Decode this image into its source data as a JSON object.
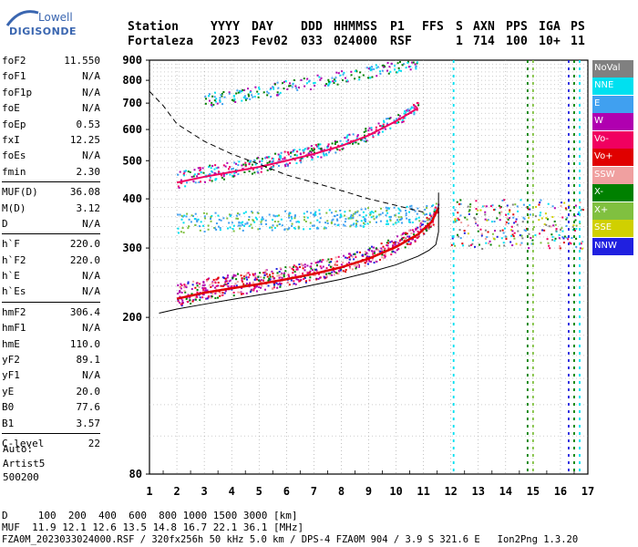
{
  "logo": {
    "line1": "Lowell",
    "line2": "DIGISONDE"
  },
  "header": {
    "labels": [
      "Station",
      "YYYY",
      "DAY",
      "DDD",
      "HHMMSS",
      "P1",
      "FFS",
      "S",
      "AXN",
      "PPS",
      "IGA",
      "PS"
    ],
    "values": [
      "Fortaleza",
      "2023",
      "Fev02",
      "033",
      "024000",
      "RSF",
      "1",
      "714",
      "100",
      "10+",
      "11"
    ]
  },
  "parameters": [
    [
      {
        "name": "foF2",
        "value": "11.550"
      },
      {
        "name": "foF1",
        "value": "N/A"
      },
      {
        "name": "foF1p",
        "value": "N/A"
      },
      {
        "name": "foE",
        "value": "N/A"
      },
      {
        "name": "foEp",
        "value": "0.53"
      },
      {
        "name": "fxI",
        "value": "12.25"
      },
      {
        "name": "foEs",
        "value": "N/A"
      },
      {
        "name": "fmin",
        "value": "2.30"
      }
    ],
    [
      {
        "name": "MUF(D)",
        "value": "36.08"
      },
      {
        "name": "M(D)",
        "value": "3.12"
      },
      {
        "name": "D",
        "value": "N/A"
      }
    ],
    [
      {
        "name": "h`F",
        "value": "220.0"
      },
      {
        "name": "h`F2",
        "value": "220.0"
      },
      {
        "name": "h`E",
        "value": "N/A"
      },
      {
        "name": "h`Es",
        "value": "N/A"
      }
    ],
    [
      {
        "name": "hmF2",
        "value": "306.4"
      },
      {
        "name": "hmF1",
        "value": "N/A"
      },
      {
        "name": "hmE",
        "value": "110.0"
      },
      {
        "name": "yF2",
        "value": "89.1"
      },
      {
        "name": "yF1",
        "value": "N/A"
      },
      {
        "name": "yE",
        "value": "20.0"
      },
      {
        "name": "B0",
        "value": "77.6"
      },
      {
        "name": "B1",
        "value": "3.57"
      }
    ],
    [
      {
        "name": "C-level",
        "value": "22"
      }
    ]
  ],
  "auto": {
    "line1": "Auto:",
    "line2": "Artist5",
    "line3": "500200"
  },
  "legend": [
    {
      "label": "NoVal",
      "color": "#808080"
    },
    {
      "label": "NNE",
      "color": "#00e0f0"
    },
    {
      "label": "E",
      "color": "#40a0f0"
    },
    {
      "label": "W",
      "color": "#b000b0"
    },
    {
      "label": "Vo-",
      "color": "#f00060"
    },
    {
      "label": "Vo+",
      "color": "#e00000"
    },
    {
      "label": "SSW",
      "color": "#f0a0a0"
    },
    {
      "label": "X-",
      "color": "#008000"
    },
    {
      "label": "X+",
      "color": "#80c040"
    },
    {
      "label": "SSE",
      "color": "#d0d000"
    },
    {
      "label": "NNW",
      "color": "#2020e0"
    }
  ],
  "footer": {
    "d_row": "D     100  200  400  600  800 1000 1500 3000 [km]",
    "muf_row": "MUF  11.9 12.1 12.6 13.5 14.8 16.7 22.1 36.1 [MHz]",
    "info_row": "FZA0M_2023033024000.RSF / 320fx256h 50 kHz 5.0 km / DPS-4 FZA0M 904 / 3.9 S 321.6 E   Ion2Png 1.3.20"
  },
  "chart_data": {
    "type": "scatter",
    "xlim": [
      1,
      17
    ],
    "ylim": [
      80,
      900
    ],
    "y_scale": "log",
    "x_ticks": [
      "1",
      "2",
      "3",
      "4",
      "5",
      "6",
      "7",
      "8",
      "9",
      "10",
      "11",
      "12",
      "13",
      "14",
      "15",
      "16",
      "17"
    ],
    "y_ticks": [
      "80",
      "200",
      "300",
      "400",
      "500",
      "600",
      "700",
      "800",
      "900"
    ],
    "x_tick_values": [
      1,
      2,
      3,
      4,
      5,
      6,
      7,
      8,
      9,
      10,
      11,
      12,
      13,
      14,
      15,
      16,
      17
    ],
    "y_tick_values": [
      80,
      200,
      300,
      400,
      500,
      600,
      700,
      800,
      900
    ],
    "grid": true,
    "traces": {
      "f_trace_x": [
        2.0,
        3.0,
        4.0,
        5.0,
        6.0,
        7.0,
        8.0,
        9.0,
        10.0,
        10.8,
        11.3,
        11.55
      ],
      "f_trace_y": [
        223,
        231,
        237,
        243,
        250,
        258,
        268,
        282,
        302,
        325,
        350,
        380
      ],
      "f2_multiple_x": [
        2.0,
        3.0,
        4.0,
        5.0,
        6.0,
        7.0,
        8.0,
        9.0,
        10.0,
        10.8
      ],
      "f2_multiple_y": [
        440,
        455,
        468,
        482,
        500,
        520,
        545,
        580,
        630,
        680
      ]
    },
    "model_profile": {
      "x": [
        1.35,
        2,
        3,
        4,
        5,
        6,
        7,
        8,
        9,
        10,
        10.8,
        11.2,
        11.45,
        11.55,
        11.55
      ],
      "y": [
        205,
        210,
        216,
        222,
        228,
        234,
        242,
        250,
        260,
        272,
        286,
        296,
        306,
        330,
        415
      ]
    },
    "muf_curve": {
      "x": [
        1.0,
        1.5,
        2.0,
        3.0,
        4.0,
        5.0,
        6.0,
        7.0,
        8.0,
        9.0,
        10.0,
        11.0
      ],
      "y": [
        750,
        690,
        620,
        560,
        520,
        490,
        460,
        440,
        420,
        400,
        385,
        370
      ]
    }
  }
}
